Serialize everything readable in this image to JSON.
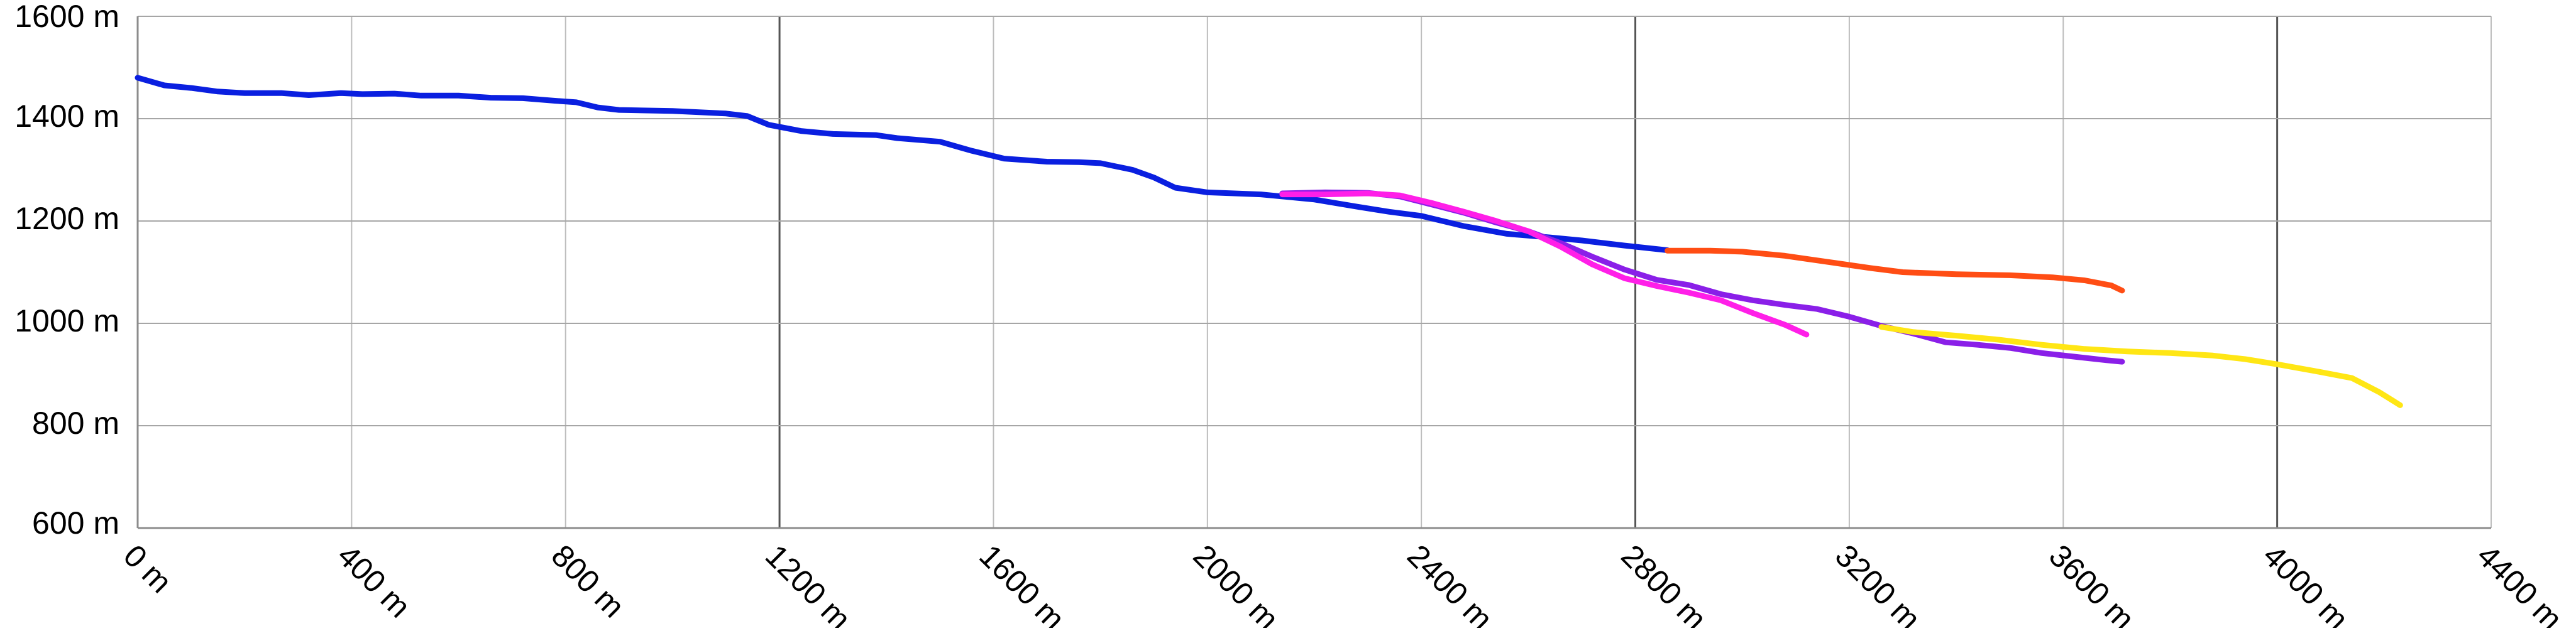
{
  "chart_data": {
    "type": "line",
    "title": "",
    "xlabel": "",
    "ylabel": "",
    "xlim": [
      0,
      4400
    ],
    "ylim": [
      600,
      1600
    ],
    "x_ticks": [
      0,
      400,
      800,
      1200,
      1600,
      2000,
      2400,
      2800,
      3200,
      3600,
      4000,
      4400
    ],
    "x_tick_labels": [
      "0 m",
      "400 m",
      "800 m",
      "1200 m",
      "1600 m",
      "2000 m",
      "2400 m",
      "2800 m",
      "3200 m",
      "3600 m",
      "4000 m",
      "4400 m"
    ],
    "y_ticks": [
      600,
      800,
      1000,
      1200,
      1400,
      1600
    ],
    "y_tick_labels": [
      "600 m",
      "800 m",
      "1000 m",
      "1200 m",
      "1400 m",
      "1600 m"
    ],
    "major_x_gridlines": [
      1200,
      2800,
      4000
    ],
    "grid": true,
    "legend": "none",
    "series": [
      {
        "color": "#0a1fe0",
        "points": [
          [
            0,
            1480
          ],
          [
            50,
            1465
          ],
          [
            100,
            1460
          ],
          [
            150,
            1453
          ],
          [
            200,
            1450
          ],
          [
            270,
            1450
          ],
          [
            320,
            1446
          ],
          [
            380,
            1450
          ],
          [
            420,
            1448
          ],
          [
            480,
            1449
          ],
          [
            530,
            1445
          ],
          [
            600,
            1445
          ],
          [
            660,
            1441
          ],
          [
            720,
            1440
          ],
          [
            780,
            1435
          ],
          [
            820,
            1432
          ],
          [
            860,
            1422
          ],
          [
            900,
            1417
          ],
          [
            1000,
            1415
          ],
          [
            1100,
            1410
          ],
          [
            1140,
            1405
          ],
          [
            1180,
            1388
          ],
          [
            1240,
            1376
          ],
          [
            1300,
            1370
          ],
          [
            1380,
            1368
          ],
          [
            1420,
            1362
          ],
          [
            1500,
            1355
          ],
          [
            1560,
            1337
          ],
          [
            1620,
            1322
          ],
          [
            1700,
            1316
          ],
          [
            1760,
            1315
          ],
          [
            1800,
            1313
          ],
          [
            1860,
            1300
          ],
          [
            1900,
            1285
          ],
          [
            1940,
            1265
          ],
          [
            2000,
            1256
          ],
          [
            2100,
            1252
          ],
          [
            2200,
            1242
          ],
          [
            2280,
            1228
          ],
          [
            2340,
            1218
          ],
          [
            2400,
            1210
          ],
          [
            2480,
            1190
          ],
          [
            2560,
            1175
          ],
          [
            2640,
            1168
          ],
          [
            2700,
            1162
          ],
          [
            2780,
            1152
          ],
          [
            2860,
            1143
          ]
        ]
      },
      {
        "color": "#ff4d14",
        "points": [
          [
            2860,
            1142
          ],
          [
            2940,
            1142
          ],
          [
            3000,
            1140
          ],
          [
            3080,
            1132
          ],
          [
            3160,
            1120
          ],
          [
            3240,
            1108
          ],
          [
            3300,
            1100
          ],
          [
            3400,
            1096
          ],
          [
            3500,
            1094
          ],
          [
            3580,
            1090
          ],
          [
            3640,
            1084
          ],
          [
            3690,
            1074
          ],
          [
            3710,
            1064
          ]
        ]
      },
      {
        "color": "#8a1fe8",
        "points": [
          [
            2140,
            1254
          ],
          [
            2220,
            1256
          ],
          [
            2300,
            1255
          ],
          [
            2360,
            1248
          ],
          [
            2420,
            1232
          ],
          [
            2480,
            1216
          ],
          [
            2540,
            1197
          ],
          [
            2600,
            1180
          ],
          [
            2660,
            1157
          ],
          [
            2720,
            1130
          ],
          [
            2780,
            1105
          ],
          [
            2840,
            1085
          ],
          [
            2900,
            1075
          ],
          [
            2960,
            1057
          ],
          [
            3020,
            1045
          ],
          [
            3080,
            1036
          ],
          [
            3140,
            1028
          ],
          [
            3200,
            1013
          ],
          [
            3260,
            995
          ],
          [
            3320,
            980
          ],
          [
            3380,
            963
          ],
          [
            3440,
            958
          ],
          [
            3500,
            952
          ],
          [
            3560,
            942
          ],
          [
            3620,
            935
          ],
          [
            3680,
            928
          ],
          [
            3710,
            925
          ]
        ]
      },
      {
        "color": "#ff1fe8",
        "points": [
          [
            2140,
            1252
          ],
          [
            2220,
            1252
          ],
          [
            2300,
            1254
          ],
          [
            2360,
            1250
          ],
          [
            2420,
            1235
          ],
          [
            2480,
            1218
          ],
          [
            2540,
            1200
          ],
          [
            2600,
            1180
          ],
          [
            2660,
            1150
          ],
          [
            2720,
            1115
          ],
          [
            2780,
            1088
          ],
          [
            2840,
            1073
          ],
          [
            2900,
            1060
          ],
          [
            2960,
            1045
          ],
          [
            3020,
            1020
          ],
          [
            3080,
            997
          ],
          [
            3120,
            978
          ]
        ]
      },
      {
        "color": "#ffe614",
        "points": [
          [
            3260,
            993
          ],
          [
            3320,
            983
          ],
          [
            3400,
            976
          ],
          [
            3480,
            968
          ],
          [
            3560,
            958
          ],
          [
            3640,
            950
          ],
          [
            3720,
            945
          ],
          [
            3800,
            942
          ],
          [
            3880,
            937
          ],
          [
            3940,
            930
          ],
          [
            4000,
            920
          ],
          [
            4080,
            905
          ],
          [
            4140,
            893
          ],
          [
            4190,
            866
          ],
          [
            4230,
            840
          ]
        ]
      }
    ]
  }
}
